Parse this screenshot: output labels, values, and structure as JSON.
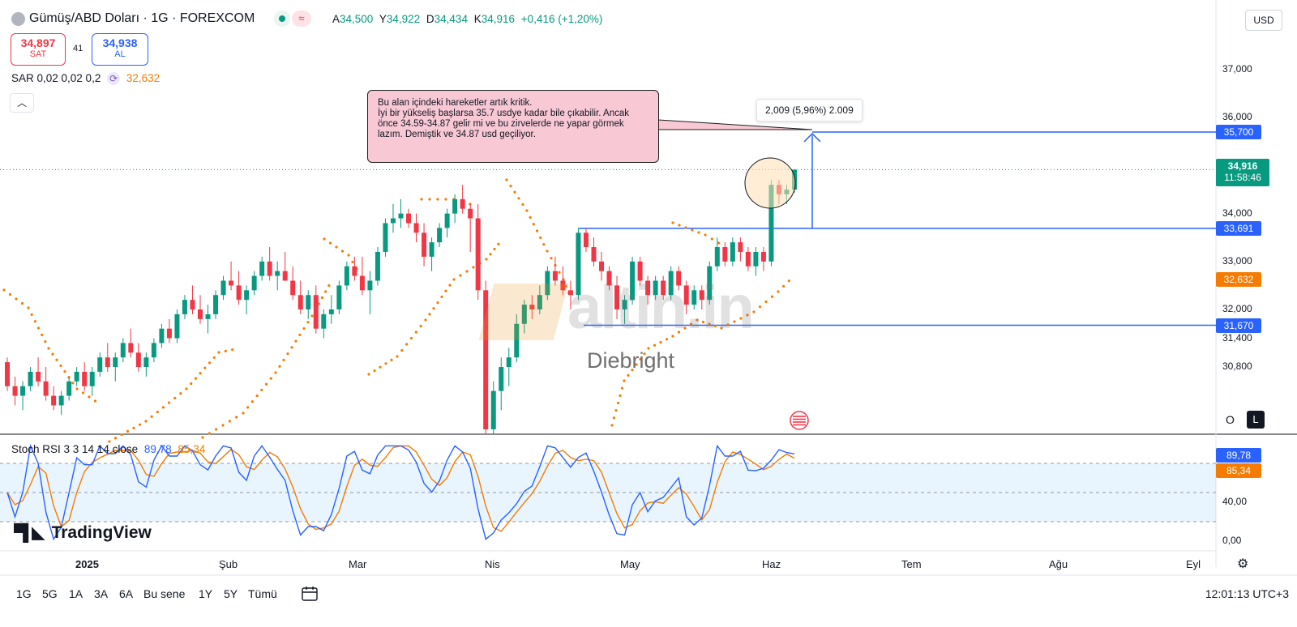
{
  "header": {
    "title": "Gümüş/ABD Doları · 1G · FOREXCOM",
    "ohlc": [
      {
        "k": "A",
        "v": "34,500"
      },
      {
        "k": "Y",
        "v": "34,922"
      },
      {
        "k": "D",
        "v": "34,434"
      },
      {
        "k": "K",
        "v": "34,916"
      }
    ],
    "change": "+0,416 (+1,20%)",
    "currency": "USD"
  },
  "trade": {
    "sell_price": "34,897",
    "sell_label": "SAT",
    "spread": "41",
    "buy_price": "34,938",
    "buy_label": "AL"
  },
  "sar": {
    "label": "SAR 0,02 0,02 0,2",
    "value": "32,632"
  },
  "annotation": {
    "text": "Bu alan içindeki hareketler artık kritik.\nİyi bir yükseliş başlarsa 35.7 usdye kadar bile çıkabilir. Ancak önce 34.59-34.87 gelir mi ve bu zirvelerde ne yapar görmek lazım. Demiştik ve 34.87 usd geçiliyor.",
    "range_label": "2,009 (5,96%) 2.009"
  },
  "watermark": {
    "brand": "altin.in",
    "author": "Diebright"
  },
  "price_axis": {
    "ticks": [
      {
        "label": "37,000",
        "v": 37.0
      },
      {
        "label": "36,000",
        "v": 36.0
      },
      {
        "label": "34,000",
        "v": 34.0
      },
      {
        "label": "33,000",
        "v": 33.0
      },
      {
        "label": "32,000",
        "v": 32.0
      },
      {
        "label": "31,400",
        "v": 31.4
      },
      {
        "label": "30,800",
        "v": 30.8
      }
    ],
    "tags": [
      {
        "label": "35,700",
        "v": 35.7,
        "color": "#2962ff"
      },
      {
        "label": "33,691",
        "v": 33.691,
        "color": "#2962ff"
      },
      {
        "label": "32,632",
        "v": 32.632,
        "color": "#f57c00"
      },
      {
        "label": "31,670",
        "v": 31.67,
        "color": "#2962ff"
      }
    ],
    "last_price": "34,916",
    "countdown": "11:58:46",
    "last_color": "#089981",
    "scale_mode": "O",
    "log_mode": "L"
  },
  "levels": [
    {
      "name": "resistance",
      "v": 35.7
    },
    {
      "name": "breakout",
      "v": 33.691
    },
    {
      "name": "support",
      "v": 31.67
    }
  ],
  "stoch": {
    "label": "Stoch RSI 3 3 14 14 close",
    "k_value": "89,78",
    "d_value": "85,34",
    "k_color": "#2962ff",
    "d_color": "#f57c00",
    "ticks": [
      {
        "label": "40,00",
        "v": 40
      },
      {
        "label": "0,00",
        "v": 0
      }
    ]
  },
  "time_axis": [
    "2025",
    "Şub",
    "Mar",
    "Nis",
    "May",
    "Haz",
    "Tem",
    "Ağu",
    "Eyl"
  ],
  "toolbar": {
    "ranges": [
      "1G",
      "5G",
      "1A",
      "3A",
      "6A",
      "Bu sene",
      "1Y",
      "5Y",
      "Tümü"
    ],
    "clock": "12:01:13 UTC+3"
  },
  "logo": "TradingView",
  "chart_data": {
    "type": "candlestick",
    "title": "Gümüş/ABD Doları · 1G · FOREXCOM",
    "xlabel": "",
    "ylabel": "",
    "ylim": [
      30.2,
      37.5
    ],
    "up_color": "#089981",
    "down_color": "#f23645",
    "ohlc": [
      [
        30.9,
        31.0,
        30.3,
        30.4
      ],
      [
        30.4,
        30.6,
        30.0,
        30.2
      ],
      [
        30.2,
        30.5,
        29.9,
        30.4
      ],
      [
        30.4,
        30.8,
        30.3,
        30.7
      ],
      [
        30.7,
        31.0,
        30.4,
        30.5
      ],
      [
        30.5,
        30.8,
        30.1,
        30.2
      ],
      [
        30.2,
        30.4,
        29.9,
        30.0
      ],
      [
        30.0,
        30.3,
        29.8,
        30.2
      ],
      [
        30.2,
        30.6,
        30.1,
        30.5
      ],
      [
        30.5,
        30.8,
        30.4,
        30.7
      ],
      [
        30.7,
        30.9,
        30.3,
        30.4
      ],
      [
        30.4,
        30.8,
        30.2,
        30.7
      ],
      [
        30.7,
        31.1,
        30.6,
        31.0
      ],
      [
        31.0,
        31.3,
        30.7,
        30.8
      ],
      [
        30.8,
        31.1,
        30.5,
        31.0
      ],
      [
        31.0,
        31.4,
        30.9,
        31.3
      ],
      [
        31.3,
        31.6,
        31.0,
        31.1
      ],
      [
        31.1,
        31.3,
        30.7,
        30.8
      ],
      [
        30.8,
        31.1,
        30.6,
        31.0
      ],
      [
        31.0,
        31.4,
        30.9,
        31.3
      ],
      [
        31.3,
        31.7,
        31.2,
        31.6
      ],
      [
        31.6,
        31.8,
        31.3,
        31.4
      ],
      [
        31.4,
        32.0,
        31.3,
        31.9
      ],
      [
        31.9,
        32.3,
        31.8,
        32.2
      ],
      [
        32.2,
        32.5,
        31.9,
        32.0
      ],
      [
        32.0,
        32.3,
        31.7,
        31.8
      ],
      [
        31.8,
        32.1,
        31.5,
        31.9
      ],
      [
        31.9,
        32.4,
        31.8,
        32.3
      ],
      [
        32.3,
        32.7,
        32.2,
        32.6
      ],
      [
        32.6,
        33.0,
        32.4,
        32.5
      ],
      [
        32.5,
        32.8,
        32.1,
        32.2
      ],
      [
        32.2,
        32.5,
        31.9,
        32.4
      ],
      [
        32.4,
        32.8,
        32.3,
        32.7
      ],
      [
        32.7,
        33.1,
        32.6,
        33.0
      ],
      [
        33.0,
        33.3,
        32.6,
        32.7
      ],
      [
        32.7,
        33.0,
        32.4,
        32.8
      ],
      [
        32.8,
        33.2,
        32.6,
        32.6
      ],
      [
        32.6,
        32.9,
        32.2,
        32.3
      ],
      [
        32.3,
        32.6,
        31.9,
        32.0
      ],
      [
        32.0,
        32.4,
        31.8,
        32.3
      ],
      [
        32.3,
        32.5,
        31.5,
        31.6
      ],
      [
        31.6,
        32.0,
        31.4,
        31.9
      ],
      [
        31.9,
        32.3,
        31.7,
        32.0
      ],
      [
        32.0,
        32.6,
        31.9,
        32.5
      ],
      [
        32.5,
        33.0,
        32.4,
        32.9
      ],
      [
        32.9,
        33.1,
        32.6,
        32.7
      ],
      [
        32.7,
        33.1,
        32.3,
        32.4
      ],
      [
        32.4,
        32.8,
        31.9,
        32.6
      ],
      [
        32.6,
        33.3,
        32.5,
        33.2
      ],
      [
        33.2,
        33.9,
        33.1,
        33.8
      ],
      [
        33.8,
        34.2,
        33.6,
        33.9
      ],
      [
        33.9,
        34.3,
        33.7,
        34.0
      ],
      [
        34.0,
        34.1,
        33.7,
        33.8
      ],
      [
        33.8,
        34.0,
        33.4,
        33.6
      ],
      [
        33.6,
        33.8,
        32.9,
        33.1
      ],
      [
        33.1,
        33.5,
        32.8,
        33.4
      ],
      [
        33.4,
        33.8,
        33.3,
        33.7
      ],
      [
        33.7,
        34.1,
        33.5,
        34.0
      ],
      [
        34.0,
        34.4,
        33.8,
        34.3
      ],
      [
        34.3,
        34.6,
        34.0,
        34.1
      ],
      [
        34.1,
        34.2,
        33.2,
        33.9
      ],
      [
        33.9,
        34.2,
        32.2,
        32.4
      ],
      [
        32.4,
        32.6,
        29.0,
        29.5
      ],
      [
        29.5,
        30.5,
        29.2,
        30.3
      ],
      [
        30.3,
        31.0,
        29.9,
        30.8
      ],
      [
        30.8,
        31.2,
        30.4,
        31.0
      ],
      [
        31.0,
        31.9,
        30.9,
        31.7
      ],
      [
        31.7,
        32.2,
        31.5,
        32.1
      ],
      [
        32.1,
        32.3,
        31.8,
        32.0
      ],
      [
        32.0,
        32.5,
        31.9,
        32.3
      ],
      [
        32.3,
        32.9,
        32.2,
        32.8
      ],
      [
        32.8,
        33.1,
        32.5,
        32.6
      ],
      [
        32.6,
        32.9,
        32.3,
        32.4
      ],
      [
        32.4,
        32.6,
        32.0,
        32.3
      ],
      [
        32.3,
        33.7,
        32.2,
        33.6
      ],
      [
        33.6,
        33.7,
        33.2,
        33.3
      ],
      [
        33.3,
        33.5,
        32.9,
        33.0
      ],
      [
        33.0,
        33.2,
        32.6,
        32.8
      ],
      [
        32.8,
        32.9,
        32.4,
        32.5
      ],
      [
        32.5,
        32.7,
        31.8,
        32.0
      ],
      [
        32.0,
        32.3,
        31.7,
        32.2
      ],
      [
        32.2,
        33.1,
        32.1,
        33.0
      ],
      [
        33.0,
        33.1,
        32.5,
        32.6
      ],
      [
        32.6,
        32.7,
        32.1,
        32.3
      ],
      [
        32.3,
        32.7,
        32.2,
        32.6
      ],
      [
        32.6,
        32.7,
        32.2,
        32.3
      ],
      [
        32.3,
        32.9,
        32.2,
        32.8
      ],
      [
        32.8,
        32.9,
        32.4,
        32.5
      ],
      [
        32.5,
        32.6,
        31.9,
        32.1
      ],
      [
        32.1,
        32.5,
        32.0,
        32.4
      ],
      [
        32.4,
        32.5,
        32.0,
        32.2
      ],
      [
        32.2,
        33.0,
        32.1,
        32.9
      ],
      [
        32.9,
        33.5,
        32.8,
        33.3
      ],
      [
        33.3,
        33.4,
        32.9,
        33.0
      ],
      [
        33.0,
        33.5,
        32.9,
        33.4
      ],
      [
        33.4,
        33.5,
        33.0,
        33.2
      ],
      [
        33.2,
        33.3,
        32.8,
        32.9
      ],
      [
        32.9,
        33.3,
        32.7,
        33.2
      ],
      [
        33.2,
        33.3,
        32.8,
        33.0
      ],
      [
        33.0,
        34.7,
        32.9,
        34.6
      ],
      [
        34.6,
        34.7,
        34.2,
        34.4
      ],
      [
        34.4,
        34.6,
        34.2,
        34.5
      ],
      [
        34.5,
        34.922,
        34.434,
        34.916
      ]
    ],
    "sar_points": [],
    "stoch_k_last": 89.78,
    "stoch_d_last": 85.34
  }
}
